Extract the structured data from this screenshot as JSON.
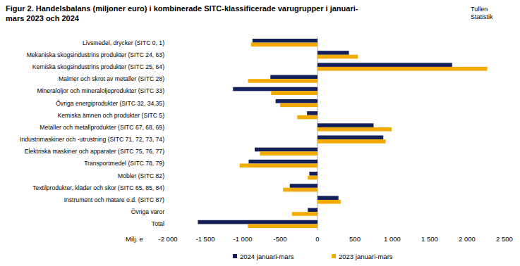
{
  "chart_data": {
    "type": "bar",
    "orientation": "horizontal",
    "title": "Figur 2. Handelsbalans (miljoner euro) i kombinerade SITC-klassificerade varugrupper i januari-mars 2023 och 2024",
    "source": "Tullen Statistik",
    "xlabel": "Milj. e",
    "categories": [
      "Livsmedel, drycker (SITC 0, 1)",
      "Mekaniska skogsindustrins produkter (SITC 24, 63)",
      "Kemiska skogsindustrins produkter (SITC 25, 64)",
      "Malmer och skrot av metaller (SITC 28)",
      "Mineraloljor och mineraloljeprodukter (SITC 33)",
      "Övriga energiprodukter (SITC 32, 34,35)",
      "Kemiska ämnen och produkter (SITC 5)",
      "Metaller och metallprodukter (SITC 67, 68, 69)",
      "Industrimaskiner och -utrustning (SITC 71, 72, 73, 74)",
      "Elektriska maskiner och apparater (SITC 75, 76, 77)",
      "Transportmedel (SITC 78, 79)",
      "Möbler (SITC 82)",
      "Textilprodukter, kläder och skor (SITC 65, 85, 84)",
      "Instrument och mätare o.d. (SITC 87)",
      "Övriga varor",
      "Total"
    ],
    "series": [
      {
        "name": "2024 januari-mars",
        "color": "#14205a",
        "values": [
          -870,
          420,
          1800,
          -630,
          -1130,
          -560,
          -140,
          750,
          880,
          -840,
          -920,
          -110,
          -370,
          280,
          -130,
          -1600
        ]
      },
      {
        "name": "2023 januari-mars",
        "color": "#f2aa00",
        "values": [
          -890,
          540,
          2270,
          -930,
          -620,
          -500,
          -270,
          990,
          910,
          -770,
          -1040,
          -130,
          -460,
          310,
          -340,
          -930
        ]
      }
    ],
    "xlim": [
      -2000,
      2500
    ],
    "xticks": [
      {
        "value": -2000,
        "label": "-2 000"
      },
      {
        "value": -1500,
        "label": "-1 500"
      },
      {
        "value": -1000,
        "label": "-1 000"
      },
      -500,
      0,
      500,
      {
        "value": 1000,
        "label": "1 000"
      },
      {
        "value": 1500,
        "label": "1 500"
      },
      {
        "value": 2000,
        "label": "2 000"
      },
      {
        "value": 2500,
        "label": "2 500"
      }
    ],
    "grid": false,
    "legend": "bottom"
  }
}
